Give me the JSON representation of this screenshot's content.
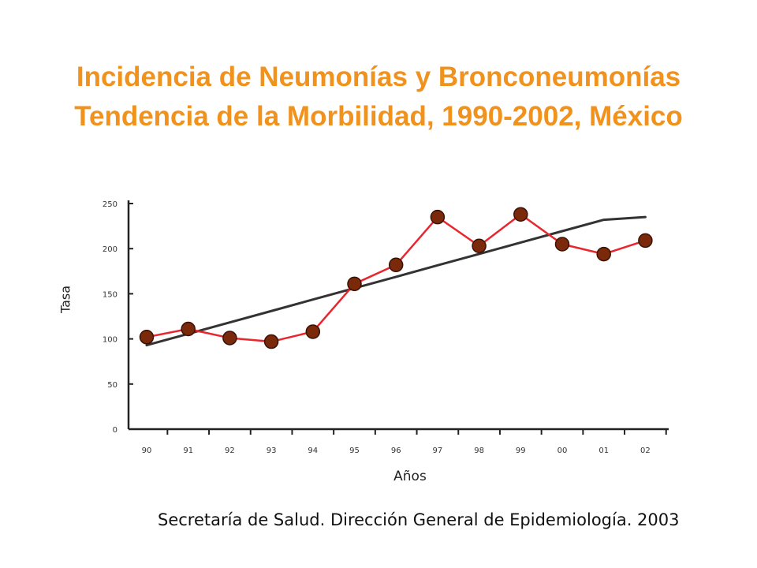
{
  "title_line1": "Incidencia de Neumonías y Bronconeumonías",
  "title_line2": "Tendencia de la Morbilidad, 1990-2002, México",
  "source": "Secretaría de Salud. Dirección General de Epidemiología. 2003",
  "chart_data": {
    "type": "line",
    "title": "Incidencia de Neumonías y Bronconeumonías Tendencia de la Morbilidad, 1990-2002, México",
    "xlabel": "Años",
    "ylabel": "Tasa",
    "categories": [
      "90",
      "91",
      "92",
      "93",
      "94",
      "95",
      "96",
      "97",
      "98",
      "99",
      "00",
      "01",
      "02"
    ],
    "series": [
      {
        "type": "line",
        "values": [
          102,
          111,
          101,
          97,
          108,
          161,
          182,
          235,
          203,
          238,
          205,
          194,
          209
        ],
        "color": "#e8262d",
        "marker_color": "#7a2a0a"
      },
      {
        "type": "trend",
        "values": [
          93,
          105.6,
          118.3,
          130.9,
          143.6,
          156.2,
          168.8,
          181.5,
          194.1,
          206.8,
          219.4,
          232,
          235
        ],
        "color": "#333333"
      }
    ],
    "ylim": [
      0,
      250
    ],
    "yticks": [
      0,
      50,
      100,
      150,
      200,
      250
    ],
    "grid": false,
    "legend": "none"
  }
}
